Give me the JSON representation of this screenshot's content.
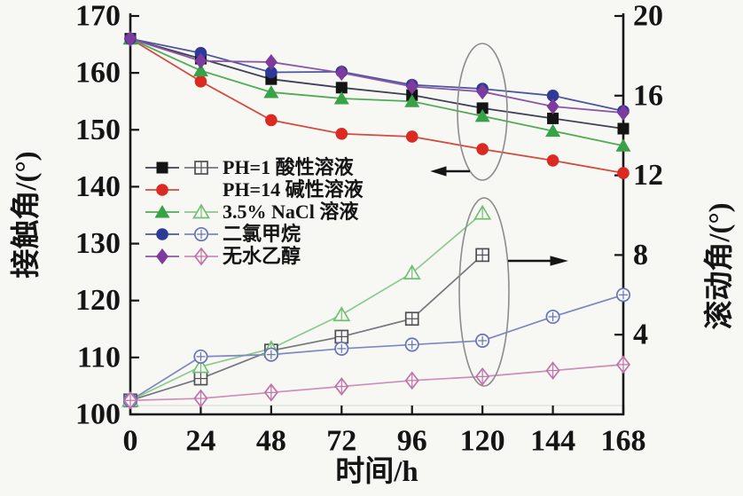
{
  "canvas": {
    "background": "#f7f8f4",
    "axis_color": "#151515",
    "annotation_ellipse_color": "#8c8c8c"
  },
  "chart_data": {
    "type": "line",
    "title": "",
    "xlabel": "时间/h",
    "ylabel_left": "接触角/(°)",
    "ylabel_right": "滚动角/(°)",
    "xlim": [
      0,
      168
    ],
    "x_ticks": [
      0,
      24,
      48,
      72,
      96,
      120,
      144,
      168
    ],
    "ylim_left": [
      100,
      170
    ],
    "y_ticks_left": [
      100,
      110,
      120,
      130,
      140,
      150,
      160,
      170
    ],
    "ylim_right": [
      0,
      20
    ],
    "y_ticks_right": [
      4,
      8,
      12,
      16,
      20
    ],
    "grid": false,
    "legend_position": "inside-left-middle",
    "series": [
      {
        "name": "PH=1 酸性溶液",
        "marker": "square",
        "filled_color": "#141414",
        "filled_line_color": "#3f3f55",
        "open_color": "#4f4f55",
        "open_line_color": "#76767e",
        "contact_angle_x": [
          0,
          24,
          48,
          72,
          96,
          120,
          144,
          168
        ],
        "contact_angle_y": [
          166,
          162.5,
          158.9,
          157.4,
          156.1,
          153.8,
          152,
          150.2
        ],
        "rolling_angle_x": [
          0,
          24,
          48,
          72,
          96,
          120
        ],
        "rolling_angle_y": [
          0.7,
          1.8,
          3.2,
          3.9,
          4.8,
          8
        ]
      },
      {
        "name": "PH=14 碱性溶液",
        "marker": "circle",
        "filled_color": "#da2a21",
        "filled_line_color": "#d44a40",
        "open_color": null,
        "open_line_color": null,
        "contact_angle_x": [
          0,
          24,
          48,
          72,
          96,
          120,
          144,
          168
        ],
        "contact_angle_y": [
          166,
          158.5,
          151.7,
          149.3,
          148.8,
          146.6,
          144.6,
          142.4
        ],
        "rolling_angle_x": null,
        "rolling_angle_y": null
      },
      {
        "name": "3.5% NaCl 溶液",
        "marker": "triangle",
        "filled_color": "#38a246",
        "filled_line_color": "#51ab56",
        "open_color": "#72bf74",
        "open_line_color": "#8cc98c",
        "contact_angle_x": [
          0,
          24,
          48,
          72,
          96,
          120,
          144,
          168
        ],
        "contact_angle_y": [
          166,
          160.4,
          156.6,
          155.5,
          155,
          152.4,
          149.8,
          147.2
        ],
        "rolling_angle_x": [
          0,
          24,
          48,
          72,
          96,
          120
        ],
        "rolling_angle_y": [
          0.7,
          2.4,
          3.3,
          5,
          7.1,
          10.1
        ]
      },
      {
        "name": "二氯甲烷",
        "marker": "circle",
        "filled_color": "#2d3a96",
        "filled_line_color": "#4d569f",
        "open_color": "#6672ba",
        "open_line_color": "#7d87c4",
        "contact_angle_x": [
          0,
          24,
          48,
          72,
          96,
          120,
          144,
          168
        ],
        "contact_angle_y": [
          166,
          163.5,
          160.1,
          160.2,
          157.9,
          157.2,
          156,
          153.3
        ],
        "rolling_angle_x": [
          0,
          24,
          48,
          72,
          96,
          120,
          144,
          168
        ],
        "rolling_angle_y": [
          0.7,
          2.9,
          3,
          3.3,
          3.5,
          3.7,
          4.9,
          6
        ]
      },
      {
        "name": "无水乙醇",
        "marker": "diamond",
        "filled_color": "#7c3b9d",
        "filled_line_color": "#8a56a8",
        "open_color": "#c172a9",
        "open_line_color": "#cb8fb9",
        "contact_angle_x": [
          0,
          24,
          48,
          72,
          96,
          120,
          144,
          168
        ],
        "contact_angle_y": [
          166,
          162.1,
          161.9,
          160,
          157.6,
          156.7,
          154.1,
          153
        ],
        "rolling_angle_x": [
          0,
          24,
          48,
          72,
          96,
          120,
          144,
          168
        ],
        "rolling_angle_y": [
          0.7,
          0.8,
          1.1,
          1.4,
          1.7,
          1.9,
          2.2,
          2.5
        ]
      }
    ],
    "annotations": [
      {
        "shape": "ellipse",
        "at_x_hours": 120,
        "arrow_points_to": "left-axis"
      },
      {
        "shape": "ellipse",
        "at_x_hours": 120,
        "arrow_points_to": "right-axis"
      }
    ]
  }
}
